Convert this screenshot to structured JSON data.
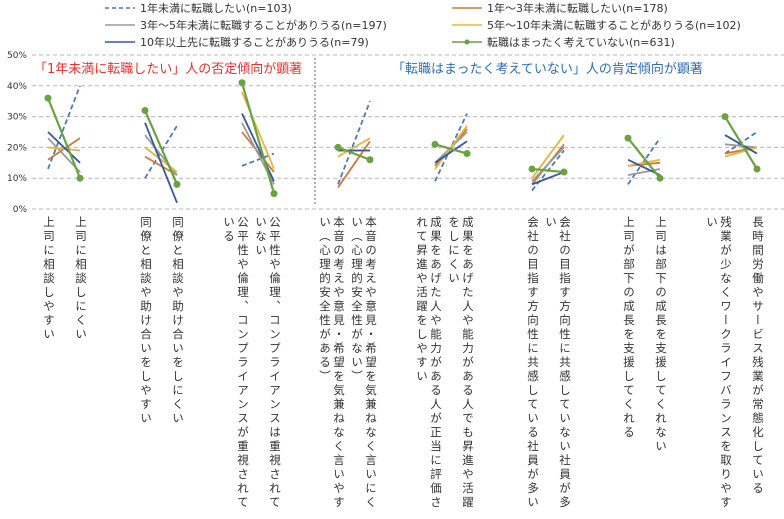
{
  "chart_data": {
    "type": "line",
    "subtype": "paired-slope",
    "title": "",
    "ylabel": "",
    "xlabel": "",
    "ylim": [
      0,
      50
    ],
    "yticks": [
      "0%",
      "10%",
      "20%",
      "30%",
      "40%",
      "50%"
    ],
    "grid": true,
    "legend_position": "top",
    "annotations": [
      {
        "text": "「1年未満に転職したい」人の否定傾向が顕著",
        "color": "#e8322b"
      },
      {
        "text": "「転職はまったく考えていない」人の肯定傾向が顕著",
        "color": "#2e6fb7"
      }
    ],
    "categories": [
      {
        "left": "上司に相談しやすい",
        "right": "上司に相談しにくい"
      },
      {
        "left": "同僚と相談や助け合いをしやすい",
        "right": "同僚と相談や助け合いをしにくい"
      },
      {
        "left": "公平性や倫理、コンプライアンスが重視されている",
        "right": "公平性や倫理、コンプライアンスは重視されていない"
      },
      {
        "left": "本音の考えや意見・希望を気兼ねなく言いやすい（心理的安全性がある）",
        "right": "本音の考えや意見・希望を気兼ねなく言いにくい（心理的安全性がない）"
      },
      {
        "left": "成果をあげた人や能力がある人が正当に評価されて昇進や活躍をしやすい",
        "right": "成果をあげた人や能力がある人でも昇進や活躍をしにくい"
      },
      {
        "left": "会社の目指す方向性に共感している社員が多い",
        "right": "会社の目指す方向性に共感していない社員が多い"
      },
      {
        "left": "上司が部下の成長を支援してくれる",
        "right": "上司は部下の成長を支援してくれない"
      },
      {
        "left": "残業が少なくワークライフバランスを取りやすい",
        "right": "長時間労働やサービス残業が常態化している"
      }
    ],
    "series": [
      {
        "name": "1年未満に転職したい(n=103)",
        "color": "#4a7ab5",
        "style": "dashed",
        "marker": false,
        "values": [
          [
            13,
            40
          ],
          [
            10,
            27
          ],
          [
            14,
            18
          ],
          [
            8,
            35
          ],
          [
            9,
            31
          ],
          [
            6,
            19
          ],
          [
            8,
            23
          ],
          [
            18,
            25
          ]
        ]
      },
      {
        "name": "1年～3年未満に転職したい(n=178)",
        "color": "#d0783a",
        "style": "solid",
        "marker": false,
        "values": [
          [
            16,
            23
          ],
          [
            17,
            11
          ],
          [
            25,
            12
          ],
          [
            7,
            22
          ],
          [
            14,
            26
          ],
          [
            8,
            21
          ],
          [
            14,
            15
          ],
          [
            18,
            20
          ]
        ]
      },
      {
        "name": "3年～5年未満に転職することがありうる(n=197)",
        "color": "#9a9a9a",
        "style": "solid",
        "marker": false,
        "values": [
          [
            23,
            12
          ],
          [
            24,
            11
          ],
          [
            28,
            8
          ],
          [
            19,
            19
          ],
          [
            15,
            25
          ],
          [
            9,
            20
          ],
          [
            11,
            13
          ],
          [
            21,
            20
          ]
        ]
      },
      {
        "name": "5年～10年未満に転職することがありうる(n=102)",
        "color": "#e8b53a",
        "style": "solid",
        "marker": false,
        "values": [
          [
            20,
            19
          ],
          [
            20,
            12
          ],
          [
            38,
            13
          ],
          [
            17,
            23
          ],
          [
            13,
            27
          ],
          [
            10,
            24
          ],
          [
            14,
            16
          ],
          [
            17,
            20
          ]
        ]
      },
      {
        "name": "10年以上先に転職することがありうる(n=79)",
        "color": "#35589e",
        "style": "solid",
        "marker": false,
        "values": [
          [
            25,
            15
          ],
          [
            28,
            2
          ],
          [
            31,
            9
          ],
          [
            19,
            19
          ],
          [
            15,
            22
          ],
          [
            8,
            12
          ],
          [
            16,
            11
          ],
          [
            24,
            18
          ]
        ]
      },
      {
        "name": "転職はまったく考えていない(n=631)",
        "color": "#6aa242",
        "style": "solid",
        "marker": true,
        "values": [
          [
            36,
            10
          ],
          [
            32,
            8
          ],
          [
            41,
            5
          ],
          [
            20,
            16
          ],
          [
            21,
            18
          ],
          [
            13,
            12
          ],
          [
            23,
            10
          ],
          [
            30,
            13
          ]
        ]
      }
    ]
  },
  "legend": [
    {
      "label": "1年未満に転職したい(n=103)"
    },
    {
      "label": "1年～3年未満に転職したい(n=178)"
    },
    {
      "label": "3年～5年未満に転職することがありうる(n=197)"
    },
    {
      "label": "5年～10年未満に転職することがありうる(n=102)"
    },
    {
      "label": "10年以上先に転職することがありうる(n=79)"
    },
    {
      "label": "転職はまったく考えていない(n=631)"
    }
  ],
  "annotations": {
    "left": "「1年未満に転職したい」人の否定傾向が顕著",
    "right": "「転職はまったく考えていない」人の肯定傾向が顕著"
  },
  "yaxis": [
    "50%",
    "40%",
    "30%",
    "20%",
    "10%",
    "0%"
  ]
}
